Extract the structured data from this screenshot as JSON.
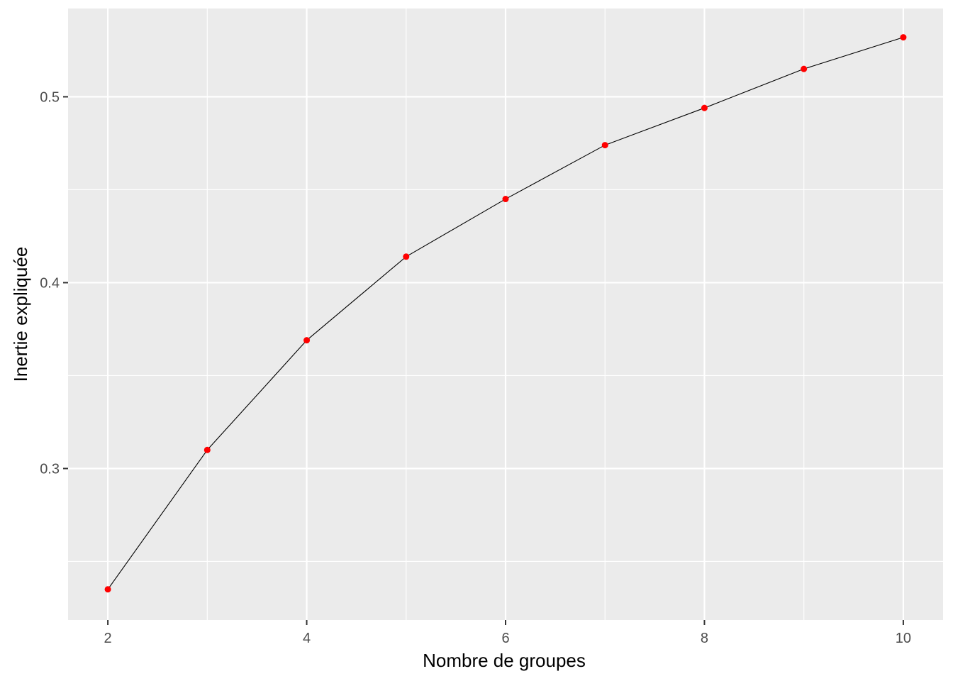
{
  "chart_data": {
    "type": "line",
    "xlabel": "Nombre de groupes",
    "ylabel": "Inertie expliquée",
    "x": [
      2,
      3,
      4,
      5,
      6,
      7,
      8,
      9,
      10
    ],
    "series": [
      {
        "values": [
          0.235,
          0.31,
          0.369,
          0.414,
          0.445,
          0.474,
          0.494,
          0.515,
          0.532
        ]
      }
    ],
    "xlim": [
      1.6,
      10.4
    ],
    "ylim": [
      0.2185,
      0.5475
    ],
    "x_ticks": [
      2,
      4,
      6,
      8,
      10
    ],
    "x_tick_labels": [
      "2",
      "4",
      "6",
      "8",
      "10"
    ],
    "y_ticks": [
      0.3,
      0.4,
      0.5
    ],
    "y_tick_labels": [
      "0.3",
      "0.4",
      "0.5"
    ],
    "grid": true,
    "colors": {
      "panel_background": "#EBEBEB",
      "grid": "#FFFFFF",
      "line": "#000000",
      "point": "#FF0000"
    }
  }
}
